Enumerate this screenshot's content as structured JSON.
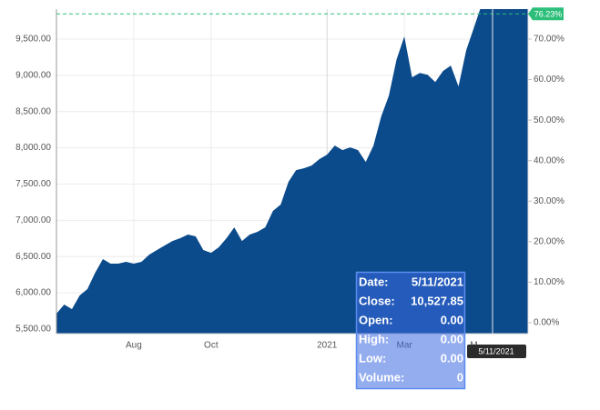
{
  "chart_data": {
    "type": "area",
    "color": "#0b4a8b",
    "categories": [
      null,
      null,
      null,
      null,
      null,
      null,
      null,
      null,
      null,
      null,
      "Aug",
      null,
      null,
      null,
      null,
      null,
      null,
      null,
      null,
      null,
      "Oct",
      null,
      null,
      null,
      null,
      null,
      null,
      null,
      null,
      null,
      null,
      null,
      null,
      null,
      null,
      "2021",
      null,
      null,
      null,
      null,
      null,
      null,
      null,
      null,
      null,
      "Mar",
      null,
      null,
      null,
      null,
      null,
      null,
      null,
      null,
      "M",
      null,
      null,
      null,
      null,
      null,
      null,
      null
    ],
    "values": [
      5713,
      5838,
      5776,
      5964,
      6051,
      6277,
      6465,
      6402,
      6402,
      6427,
      6402,
      6427,
      6527,
      6590,
      6653,
      6715,
      6753,
      6803,
      6778,
      6590,
      6552,
      6628,
      6753,
      6903,
      6715,
      6803,
      6841,
      6903,
      7129,
      7217,
      7530,
      7693,
      7718,
      7755,
      7843,
      7906,
      8031,
      7968,
      8006,
      7968,
      7806,
      8031,
      8432,
      8720,
      9221,
      9535,
      8971,
      9033,
      9008,
      8908,
      9059,
      9134,
      8846,
      9347,
      9660,
      9973,
      10036,
      10099,
      10099,
      10074,
      10061,
      10061
    ],
    "ylim": [
      5437,
      9913
    ],
    "yticks": [
      {
        "value": 5500,
        "label": "5,500.00"
      },
      {
        "value": 6000,
        "label": "6,000.00"
      },
      {
        "value": 6500,
        "label": "6,500.00"
      },
      {
        "value": 7000,
        "label": "7,000.00"
      },
      {
        "value": 7500,
        "label": "7,500.00"
      },
      {
        "value": 8000,
        "label": "8,000.00"
      },
      {
        "value": 8500,
        "label": "8,500.00"
      },
      {
        "value": 9000,
        "label": "9,000.00"
      },
      {
        "value": 9500,
        "label": "9,500.00"
      }
    ],
    "y2lim": [
      -2.7,
      77.4
    ],
    "y2ticks": [
      {
        "value": 0,
        "label": "0.00%"
      },
      {
        "value": 10,
        "label": "10.00%"
      },
      {
        "value": 20,
        "label": "20.00%"
      },
      {
        "value": 30,
        "label": "30.00%"
      },
      {
        "value": 40,
        "label": "40.00%"
      },
      {
        "value": 50,
        "label": "50.00%"
      },
      {
        "value": 60,
        "label": "60.00%"
      },
      {
        "value": 70,
        "label": "70.00%"
      }
    ],
    "reference": {
      "value": 76.23,
      "label": "76.23%",
      "axis": "y2",
      "color": "#2dbf7a"
    },
    "grid": true,
    "crosshair_label": "5/11/2021",
    "tooltip": [
      {
        "label": "Date:",
        "value": "5/11/2021"
      },
      {
        "label": "Close:",
        "value": "10,527.85"
      },
      {
        "label": "Open:",
        "value": "0.00"
      },
      {
        "label": "High:",
        "value": "0.00"
      },
      {
        "label": "Low:",
        "value": "0.00"
      },
      {
        "label": "Volume:",
        "value": "0"
      }
    ]
  }
}
